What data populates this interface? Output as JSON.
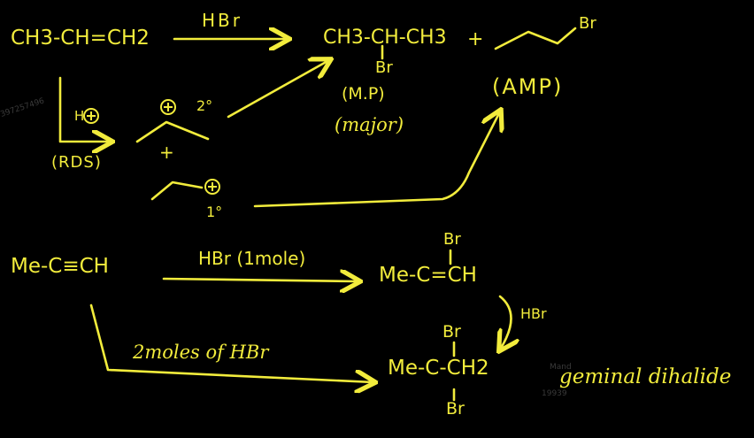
{
  "colors": {
    "ink": "#f2ec3c",
    "background": "#000000"
  },
  "reaction1": {
    "reactant": "CH3-CH=CH2",
    "reagent": "HBr",
    "main_product": "CH3-CH-CH3",
    "main_product_sub": "Br",
    "plus": "+",
    "side_product_sub": "Br",
    "mp_label": "(M.P)",
    "major_label": "(major)",
    "amp_label": "(AMP)",
    "h_plus": "H",
    "rds_label": "(RDS)",
    "secondary_label": "2°",
    "plus_mid": "+",
    "primary_label": "1°"
  },
  "reaction2": {
    "reactant": "Me-C≡CH",
    "reagent_top": "HBr (1mole)",
    "product1_sub": "Br",
    "product1": "Me-C=CH",
    "reagent_side": "HBr",
    "reagent_bottom": "2moles of HBr",
    "product2_top": "Br",
    "product2": "Me-C-CH2",
    "product2_bottom": "Br",
    "product2_label": "geminal dihalide"
  },
  "watermark": {
    "left": "9397257496",
    "right_1": "Mand",
    "right_2": "19939"
  }
}
